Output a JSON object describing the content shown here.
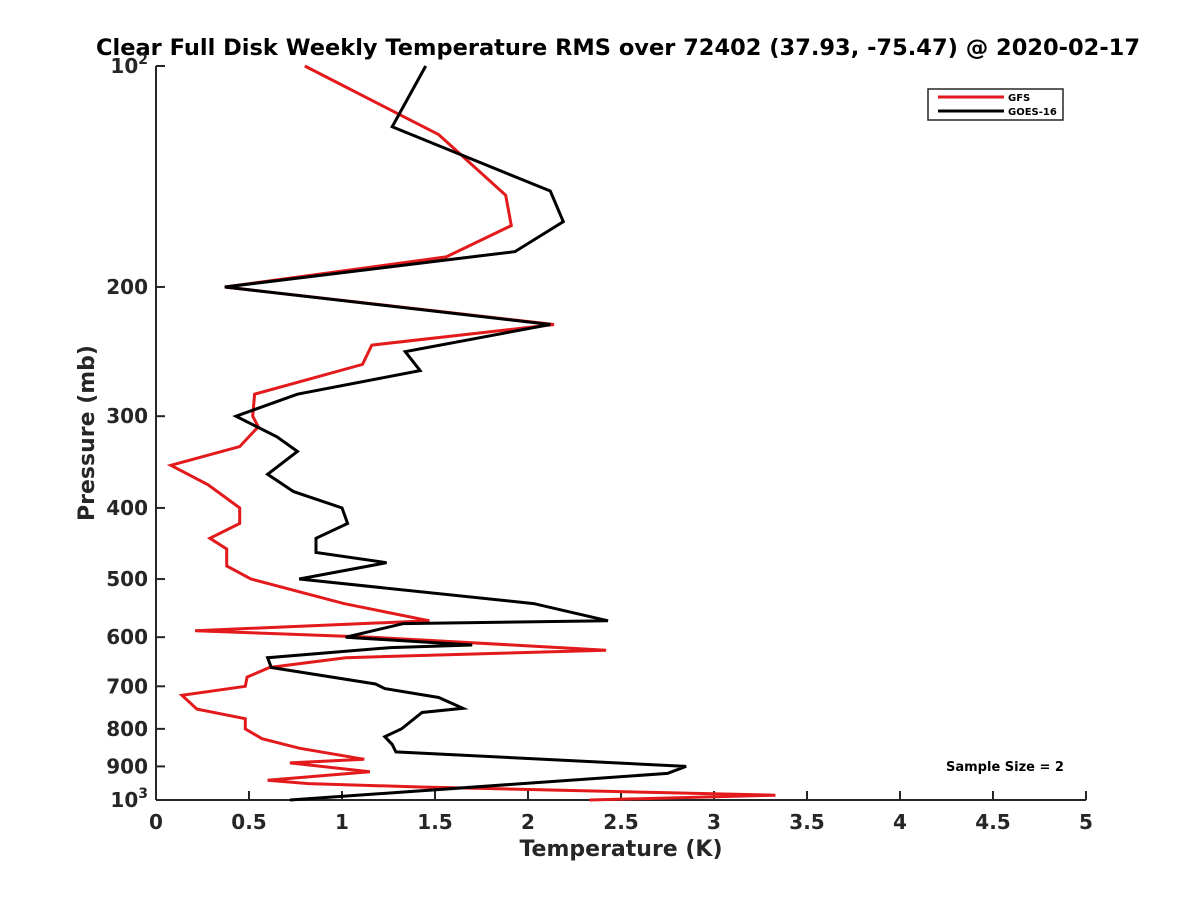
{
  "chart_data": {
    "type": "line",
    "title": "Clear Full Disk Weekly Temperature RMS over 72402 (37.93, -75.47) @ 2020-02-17",
    "xlabel": "Temperature (K)",
    "ylabel": "Pressure (mb)",
    "xlim": [
      0,
      5
    ],
    "ylim": [
      100,
      1000
    ],
    "yscale": "log",
    "y_reversed": true,
    "grid": false,
    "legend_position": "top-right",
    "x_ticks": [
      {
        "value": 0,
        "label": "0"
      },
      {
        "value": 0.5,
        "label": "0.5"
      },
      {
        "value": 1,
        "label": "1"
      },
      {
        "value": 1.5,
        "label": "1.5"
      },
      {
        "value": 2,
        "label": "2"
      },
      {
        "value": 2.5,
        "label": "2.5"
      },
      {
        "value": 3,
        "label": "3"
      },
      {
        "value": 3.5,
        "label": "3.5"
      },
      {
        "value": 4,
        "label": "4"
      },
      {
        "value": 4.5,
        "label": "4.5"
      },
      {
        "value": 5,
        "label": "5"
      }
    ],
    "y_ticks": [
      {
        "value": 100,
        "label": "10",
        "exponent": "2"
      },
      {
        "value": 200,
        "label": "200"
      },
      {
        "value": 300,
        "label": "300"
      },
      {
        "value": 400,
        "label": "400"
      },
      {
        "value": 500,
        "label": "500"
      },
      {
        "value": 600,
        "label": "600"
      },
      {
        "value": 700,
        "label": "700"
      },
      {
        "value": 800,
        "label": "800"
      },
      {
        "value": 900,
        "label": "900"
      },
      {
        "value": 1000,
        "label": "10",
        "exponent": "3"
      }
    ],
    "annotation": "Sample Size = 2",
    "series": [
      {
        "name": "GFS",
        "color": "#e31a1c",
        "points": [
          [
            0.8,
            100
          ],
          [
            1.52,
            124
          ],
          [
            1.88,
            150
          ],
          [
            1.91,
            165
          ],
          [
            1.56,
            182
          ],
          [
            0.37,
            200
          ],
          [
            2.14,
            225
          ],
          [
            1.16,
            240
          ],
          [
            1.11,
            255
          ],
          [
            0.53,
            280
          ],
          [
            0.52,
            300
          ],
          [
            0.55,
            310
          ],
          [
            0.45,
            330
          ],
          [
            0.08,
            350
          ],
          [
            0.28,
            372
          ],
          [
            0.45,
            400
          ],
          [
            0.45,
            420
          ],
          [
            0.29,
            440
          ],
          [
            0.38,
            455
          ],
          [
            0.38,
            480
          ],
          [
            0.51,
            500
          ],
          [
            1.01,
            540
          ],
          [
            1.47,
            570
          ],
          [
            0.21,
            588
          ],
          [
            1.16,
            600
          ],
          [
            2.42,
            625
          ],
          [
            1.02,
            640
          ],
          [
            0.61,
            660
          ],
          [
            0.49,
            680
          ],
          [
            0.48,
            700
          ],
          [
            0.14,
            720
          ],
          [
            0.22,
            752
          ],
          [
            0.48,
            775
          ],
          [
            0.48,
            800
          ],
          [
            0.57,
            825
          ],
          [
            0.77,
            850
          ],
          [
            1.12,
            880
          ],
          [
            0.72,
            890
          ],
          [
            1.15,
            915
          ],
          [
            0.6,
            940
          ],
          [
            0.82,
            950
          ],
          [
            1.42,
            960
          ],
          [
            3.33,
            985
          ],
          [
            2.33,
            1000
          ]
        ]
      },
      {
        "name": "GOES-16",
        "color": "#000000",
        "points": [
          [
            1.45,
            100
          ],
          [
            1.27,
            121
          ],
          [
            2.12,
            148
          ],
          [
            2.19,
            163
          ],
          [
            1.93,
            179
          ],
          [
            0.37,
            200
          ],
          [
            2.12,
            225
          ],
          [
            1.34,
            245
          ],
          [
            1.42,
            260
          ],
          [
            0.76,
            280
          ],
          [
            0.43,
            300
          ],
          [
            0.65,
            320
          ],
          [
            0.76,
            335
          ],
          [
            0.6,
            360
          ],
          [
            0.74,
            380
          ],
          [
            1.0,
            400
          ],
          [
            1.03,
            420
          ],
          [
            0.86,
            440
          ],
          [
            0.86,
            460
          ],
          [
            1.24,
            475
          ],
          [
            0.77,
            500
          ],
          [
            2.03,
            540
          ],
          [
            2.43,
            570
          ],
          [
            1.33,
            575
          ],
          [
            1.02,
            600
          ],
          [
            1.7,
            615
          ],
          [
            1.26,
            620
          ],
          [
            0.6,
            640
          ],
          [
            0.62,
            660
          ],
          [
            1.18,
            695
          ],
          [
            1.23,
            705
          ],
          [
            1.52,
            725
          ],
          [
            1.65,
            750
          ],
          [
            1.43,
            760
          ],
          [
            1.32,
            800
          ],
          [
            1.23,
            820
          ],
          [
            1.27,
            840
          ],
          [
            1.29,
            860
          ],
          [
            2.85,
            900
          ],
          [
            2.75,
            920
          ],
          [
            0.72,
            1000
          ]
        ]
      }
    ]
  }
}
